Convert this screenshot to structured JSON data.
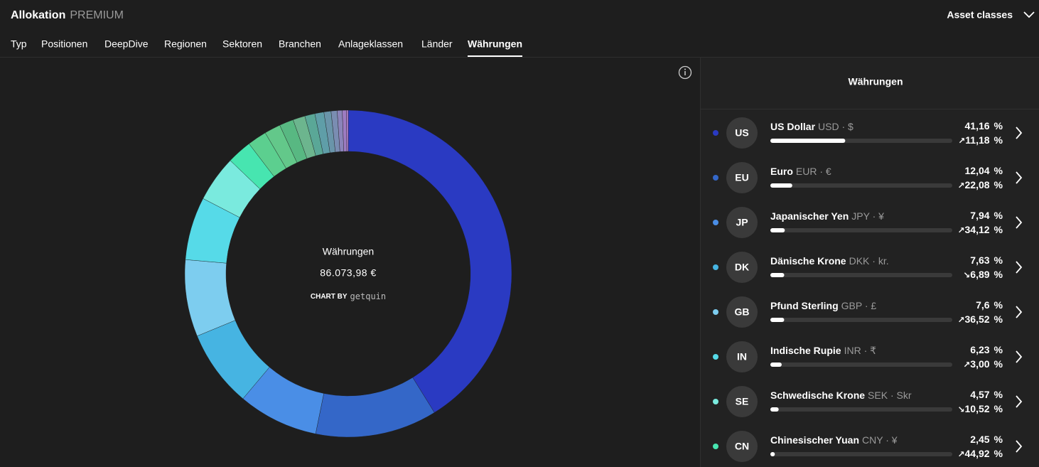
{
  "header": {
    "title": "Allokation",
    "badge": "PREMIUM",
    "selector": "Asset classes"
  },
  "tabs": {
    "items": [
      "Typ",
      "Positionen",
      "DeepDive",
      "Regionen",
      "Sektoren",
      "Branchen",
      "Anlageklassen",
      "Länder",
      "Währungen"
    ],
    "active": 8
  },
  "donut": {
    "type": "donut",
    "label": "Währungen",
    "total": "86.073,98 €",
    "credit_prefix": "CHART BY",
    "credit_brand": "getquin",
    "more_segments": [
      {
        "value": 1.9,
        "color": "#5ccf8f"
      },
      {
        "value": 1.6,
        "color": "#63c88a"
      },
      {
        "value": 1.4,
        "color": "#58b882"
      },
      {
        "value": 1.2,
        "color": "#6cb58e"
      },
      {
        "value": 1.0,
        "color": "#5aa797"
      },
      {
        "value": 0.9,
        "color": "#5f9ea8"
      },
      {
        "value": 0.7,
        "color": "#6a95aa"
      },
      {
        "value": 0.6,
        "color": "#7a8db2"
      },
      {
        "value": 0.5,
        "color": "#8b84ba"
      },
      {
        "value": 0.4,
        "color": "#9d7cc2"
      },
      {
        "value": 0.18,
        "color": "#b27fc9"
      }
    ]
  },
  "panel": {
    "title": "Währungen",
    "percent_sign": "%",
    "items": [
      {
        "code": "US",
        "name": "US Dollar",
        "meta": "USD · $",
        "share": 41.16,
        "share_label": "41,16",
        "arrow": "↗",
        "change": "11,18",
        "trend": "up",
        "color": "#2a3ac2"
      },
      {
        "code": "EU",
        "name": "Euro",
        "meta": "EUR · €",
        "share": 12.04,
        "share_label": "12,04",
        "arrow": "↗",
        "change": "22,08",
        "trend": "up",
        "color": "#3467c8"
      },
      {
        "code": "JP",
        "name": "Japanischer Yen",
        "meta": "JPY · ¥",
        "share": 7.94,
        "share_label": "7,94",
        "arrow": "↗",
        "change": "34,12",
        "trend": "up",
        "color": "#4a8ee6"
      },
      {
        "code": "DK",
        "name": "Dänische Krone",
        "meta": "DKK · kr.",
        "share": 7.63,
        "share_label": "7,63",
        "arrow": "↘",
        "change": "6,89",
        "trend": "down",
        "color": "#46b4e2"
      },
      {
        "code": "GB",
        "name": "Pfund Sterling",
        "meta": "GBP · £",
        "share": 7.6,
        "share_label": "7,6",
        "arrow": "↗",
        "change": "36,52",
        "trend": "up",
        "color": "#7dcdef"
      },
      {
        "code": "IN",
        "name": "Indische Rupie",
        "meta": "INR · ₹",
        "share": 6.23,
        "share_label": "6,23",
        "arrow": "↗",
        "change": "3,00",
        "trend": "up",
        "color": "#56dae8"
      },
      {
        "code": "SE",
        "name": "Schwedische Krone",
        "meta": "SEK · Skr",
        "share": 4.57,
        "share_label": "4,57",
        "arrow": "↘",
        "change": "10,52",
        "trend": "down",
        "color": "#7aeade"
      },
      {
        "code": "CN",
        "name": "Chinesischer Yuan",
        "meta": "CNY · ¥",
        "share": 2.45,
        "share_label": "2,45",
        "arrow": "↗",
        "change": "44,92",
        "trend": "up",
        "color": "#47e5b0"
      }
    ]
  }
}
